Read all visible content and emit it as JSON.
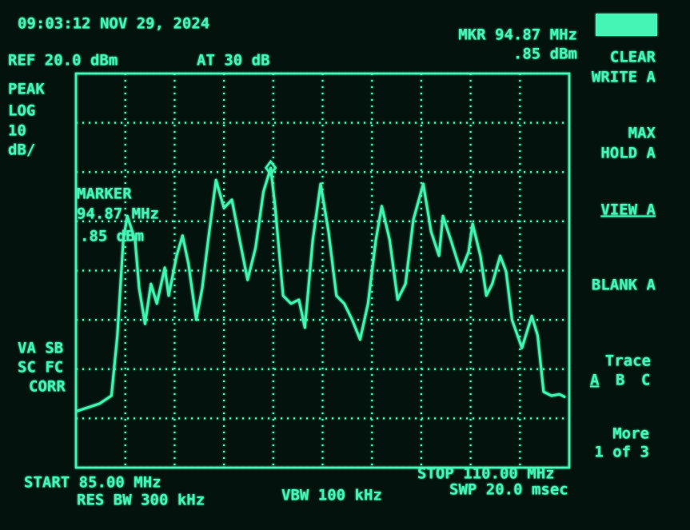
{
  "screen": {
    "timestamp": "09:03:12 NOV 29, 2024",
    "ref_level": "REF 20.0 dBm",
    "attenuation": "AT 30 dB",
    "marker_readout": {
      "freq": "MKR 94.87 MHz",
      "level": ".85 dBm"
    },
    "detector": [
      "PEAK",
      "LOG",
      "10",
      "dB/"
    ],
    "marker_box": [
      "MARKER",
      "94.87 MHz",
      ".85 dBm"
    ],
    "status": [
      "VA SB",
      "SC FC",
      "CORR"
    ],
    "softkeys": [
      [
        "CLEAR",
        "WRITE A"
      ],
      [
        "MAX",
        "HOLD A"
      ],
      [
        "VIEW A"
      ],
      [
        "BLANK A"
      ]
    ],
    "trace": {
      "title": "Trace",
      "options": [
        "A",
        "B",
        "C"
      ]
    },
    "more": [
      "More",
      "1 of 3"
    ],
    "footer": {
      "start": "START 85.00 MHz",
      "res_bw": "RES BW 300 kHz",
      "vbw": "VBW 100 kHz",
      "stop": "STOP 110.00 MHz",
      "sweep": "SWP 20.0 msec"
    }
  },
  "chart_data": {
    "type": "line",
    "color": "#3ff5b0",
    "x": [
      85.0,
      85.6,
      86.2,
      86.8,
      87.1,
      87.4,
      87.6,
      88.0,
      88.2,
      88.5,
      88.8,
      89.1,
      89.5,
      89.7,
      90.1,
      90.4,
      90.7,
      91.1,
      91.4,
      91.7,
      92.1,
      92.5,
      92.9,
      93.3,
      93.7,
      94.1,
      94.5,
      94.87,
      95.1,
      95.5,
      95.9,
      96.3,
      96.6,
      97.0,
      97.4,
      97.8,
      98.2,
      98.6,
      99.0,
      99.4,
      99.8,
      100.2,
      100.5,
      100.9,
      101.3,
      101.7,
      102.1,
      102.6,
      103.0,
      103.4,
      103.6,
      104.0,
      104.5,
      104.9,
      105.1,
      105.5,
      105.8,
      106.1,
      106.5,
      106.8,
      107.1,
      107.6,
      108.1,
      108.4,
      108.7,
      109.1,
      109.5,
      109.8
    ],
    "values": [
      -48.6,
      -47.8,
      -47.0,
      -45.4,
      -33.2,
      -13.8,
      -8.9,
      -13.8,
      -23.5,
      -30.8,
      -22.7,
      -26.7,
      -19.4,
      -25.1,
      -17.0,
      -12.9,
      -18.6,
      -30.0,
      -23.5,
      -13.8,
      -1.6,
      -7.3,
      -5.6,
      -13.8,
      -21.9,
      -15.4,
      -4.0,
      0.85,
      -7.3,
      -25.1,
      -26.7,
      -25.9,
      -31.6,
      -13.8,
      -2.4,
      -12.1,
      -25.1,
      -26.7,
      -30.0,
      -34.0,
      -26.7,
      -13.8,
      -6.9,
      -13.8,
      -25.9,
      -22.7,
      -9.7,
      -2.4,
      -12.1,
      -17.0,
      -8.9,
      -13.8,
      -20.2,
      -16.2,
      -10.5,
      -17.0,
      -25.1,
      -22.7,
      -17.0,
      -20.2,
      -30.0,
      -35.7,
      -29.2,
      -33.2,
      -44.6,
      -45.4,
      -45.1,
      -45.7
    ],
    "marker": {
      "x": 94.87,
      "y": 0.85
    },
    "xlim": [
      85,
      110
    ],
    "ylim": [
      -60,
      20
    ],
    "xticks": [
      85,
      87.5,
      90,
      92.5,
      95,
      97.5,
      100,
      102.5,
      105,
      107.5,
      110
    ],
    "yticks": [
      -60,
      -50,
      -40,
      -30,
      -20,
      -10,
      0,
      10,
      20
    ],
    "grid": true
  }
}
